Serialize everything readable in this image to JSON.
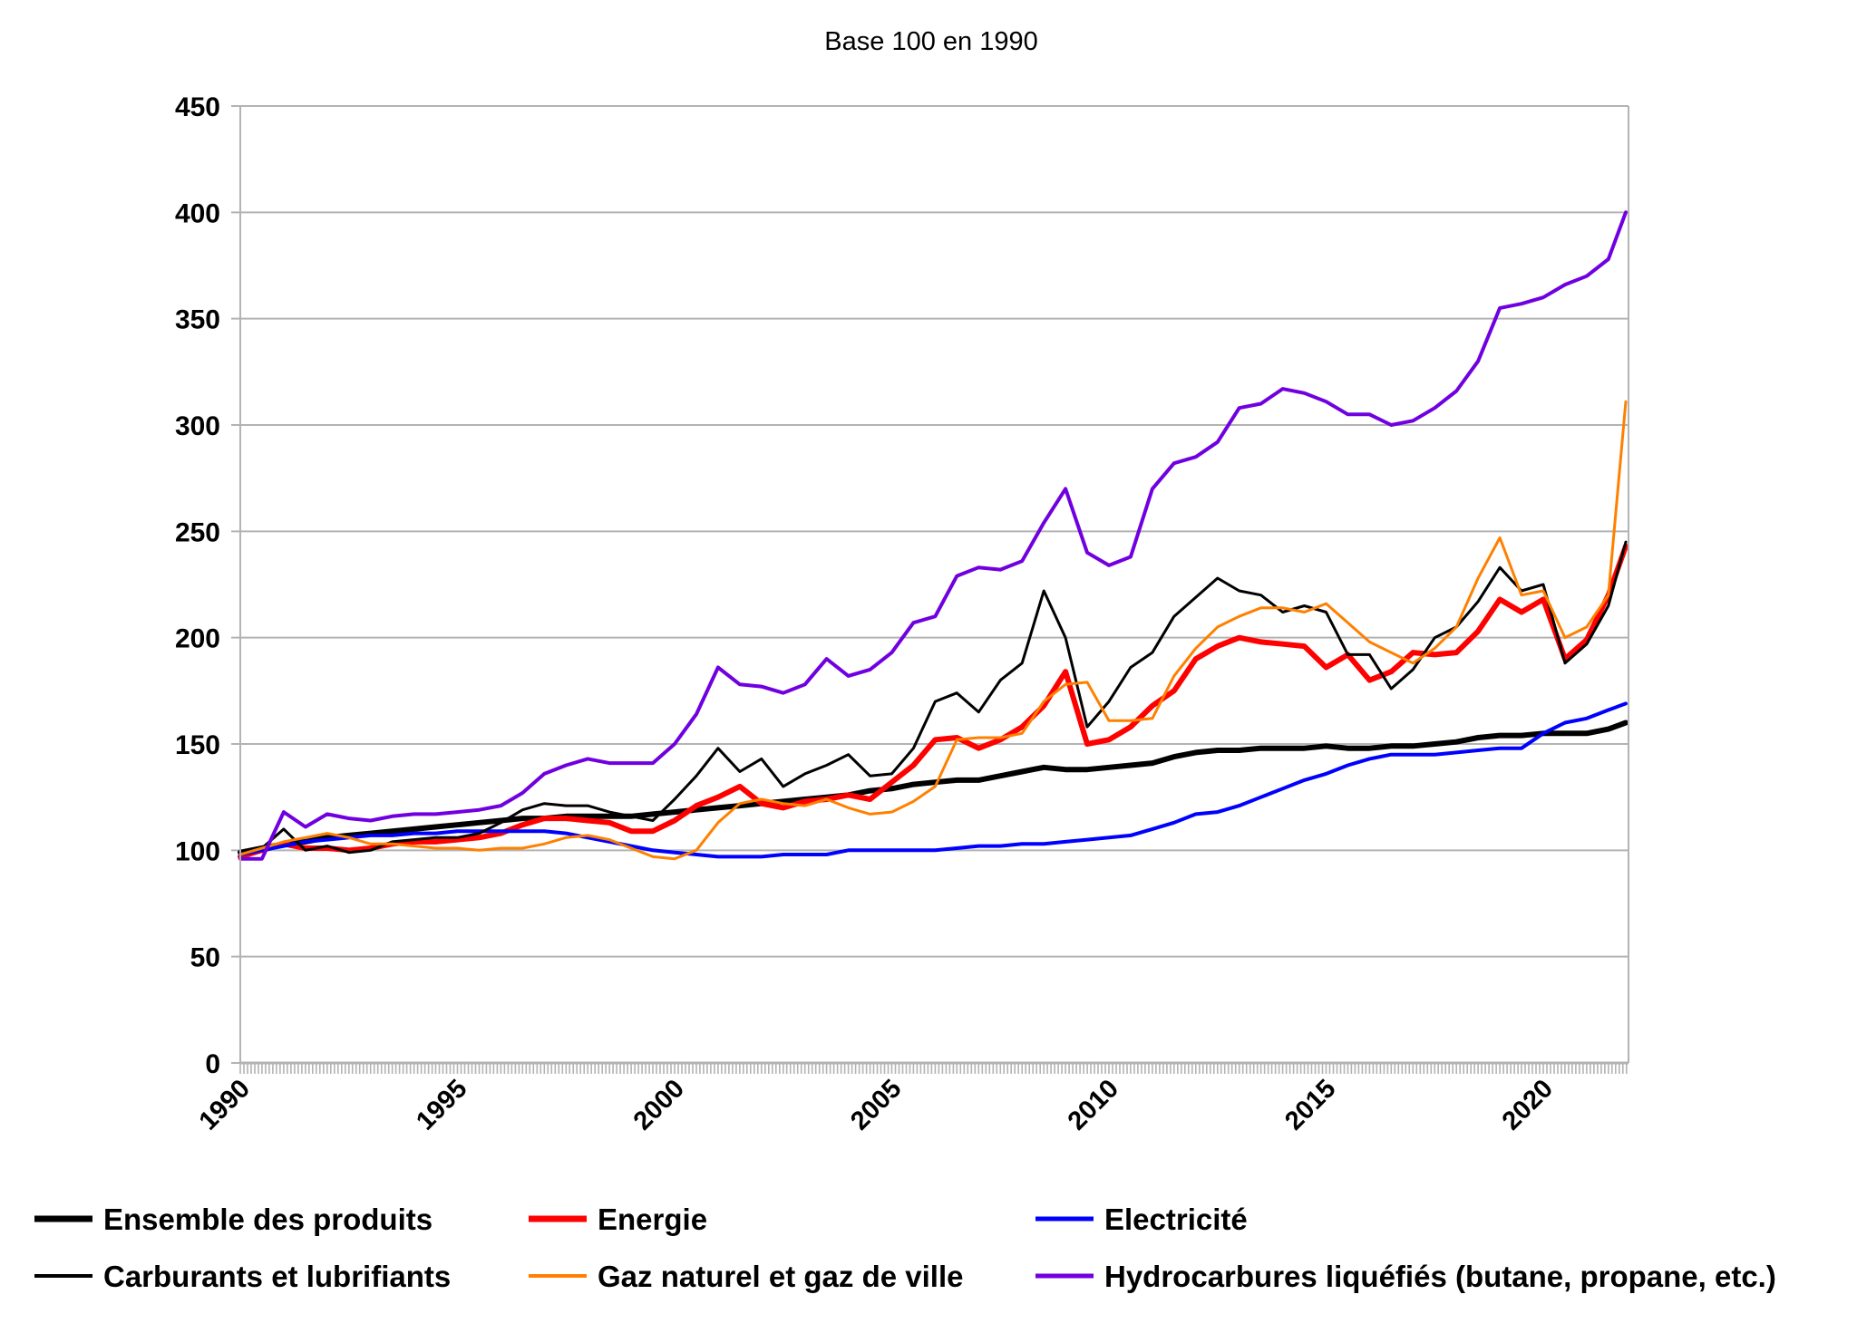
{
  "chart_data": {
    "type": "line",
    "title": "Base 100 en 1990",
    "xlabel": "",
    "ylabel": "",
    "xlim": [
      1990,
      2021.9
    ],
    "ylim": [
      0,
      450
    ],
    "yticks": [
      "0",
      "50",
      "100",
      "150",
      "200",
      "250",
      "300",
      "350",
      "400",
      "450"
    ],
    "xticks": [
      "1990",
      "1995",
      "2000",
      "2005",
      "2010",
      "2015",
      "2020"
    ],
    "grid": true,
    "legend_position": "bottom",
    "x": [
      1990.0,
      1990.5,
      1991.0,
      1991.5,
      1992.0,
      1992.5,
      1993.0,
      1993.5,
      1994.0,
      1994.5,
      1995.0,
      1995.5,
      1996.0,
      1996.5,
      1997.0,
      1997.5,
      1998.0,
      1998.5,
      1999.0,
      1999.5,
      2000.0,
      2000.5,
      2001.0,
      2001.5,
      2002.0,
      2002.5,
      2003.0,
      2003.5,
      2004.0,
      2004.5,
      2005.0,
      2005.5,
      2006.0,
      2006.5,
      2007.0,
      2007.5,
      2008.0,
      2008.5,
      2009.0,
      2009.5,
      2010.0,
      2010.5,
      2011.0,
      2011.5,
      2012.0,
      2012.5,
      2013.0,
      2013.5,
      2014.0,
      2014.5,
      2015.0,
      2015.5,
      2016.0,
      2016.5,
      2017.0,
      2017.5,
      2018.0,
      2018.5,
      2019.0,
      2019.5,
      2020.0,
      2020.5,
      2021.0,
      2021.5,
      2021.9
    ],
    "series": [
      {
        "name": "Ensemble des produits",
        "color": "#000000",
        "width": 6,
        "values": [
          99,
          101,
          103,
          104,
          106,
          107,
          108,
          109,
          110,
          111,
          112,
          113,
          114,
          115,
          115,
          116,
          116,
          116,
          116,
          117,
          118,
          119,
          120,
          121,
          122,
          123,
          124,
          125,
          126,
          128,
          129,
          131,
          132,
          133,
          133,
          135,
          137,
          139,
          138,
          138,
          139,
          140,
          141,
          144,
          146,
          147,
          147,
          148,
          148,
          148,
          149,
          148,
          148,
          149,
          149,
          150,
          151,
          153,
          154,
          154,
          155,
          155,
          155,
          157,
          160
        ]
      },
      {
        "name": "Energie",
        "color": "#ff0000",
        "width": 6,
        "values": [
          97,
          100,
          103,
          101,
          101,
          100,
          101,
          103,
          104,
          104,
          105,
          106,
          108,
          112,
          115,
          115,
          114,
          113,
          109,
          109,
          114,
          121,
          125,
          130,
          122,
          120,
          123,
          124,
          126,
          124,
          132,
          140,
          152,
          153,
          148,
          152,
          158,
          168,
          184,
          150,
          152,
          158,
          168,
          175,
          190,
          196,
          200,
          198,
          197,
          196,
          186,
          192,
          180,
          184,
          193,
          192,
          193,
          203,
          218,
          212,
          218,
          190,
          199,
          220,
          243
        ]
      },
      {
        "name": "Electricité",
        "color": "#0000ff",
        "width": 4,
        "values": [
          98,
          100,
          102,
          104,
          105,
          106,
          107,
          107,
          108,
          108,
          109,
          109,
          109,
          109,
          109,
          108,
          106,
          104,
          102,
          100,
          99,
          98,
          97,
          97,
          97,
          98,
          98,
          98,
          100,
          100,
          100,
          100,
          100,
          101,
          102,
          102,
          103,
          103,
          104,
          105,
          106,
          107,
          110,
          113,
          117,
          118,
          121,
          125,
          129,
          133,
          136,
          140,
          143,
          145,
          145,
          145,
          146,
          147,
          148,
          148,
          155,
          160,
          162,
          166,
          169
        ]
      },
      {
        "name": "Carburants et lubrifiants",
        "color": "#000000",
        "width": 3,
        "values": [
          98,
          101,
          110,
          100,
          102,
          99,
          100,
          104,
          105,
          106,
          106,
          108,
          113,
          119,
          122,
          121,
          121,
          118,
          116,
          114,
          124,
          135,
          148,
          137,
          143,
          130,
          136,
          140,
          145,
          135,
          136,
          148,
          170,
          174,
          165,
          180,
          188,
          222,
          200,
          158,
          170,
          186,
          193,
          210,
          219,
          228,
          222,
          220,
          212,
          215,
          212,
          192,
          192,
          176,
          185,
          200,
          205,
          217,
          233,
          222,
          225,
          188,
          197,
          215,
          245
        ]
      },
      {
        "name": "Gaz naturel et gaz de ville",
        "color": "#ff8000",
        "width": 3,
        "values": [
          98,
          101,
          104,
          106,
          108,
          106,
          103,
          103,
          102,
          101,
          101,
          100,
          101,
          101,
          103,
          106,
          107,
          105,
          101,
          97,
          96,
          100,
          113,
          122,
          124,
          122,
          121,
          124,
          120,
          117,
          118,
          123,
          130,
          152,
          153,
          153,
          155,
          170,
          178,
          179,
          161,
          161,
          162,
          182,
          195,
          205,
          210,
          214,
          214,
          212,
          216,
          207,
          198,
          193,
          188,
          195,
          205,
          228,
          247,
          220,
          222,
          200,
          205,
          220,
          311
        ]
      },
      {
        "name": "Hydrocarbures liquéfiés (butane, propane, etc.)",
        "color": "#7000e0",
        "width": 4,
        "values": [
          96,
          96,
          118,
          111,
          117,
          115,
          114,
          116,
          117,
          117,
          118,
          119,
          121,
          127,
          136,
          140,
          143,
          141,
          141,
          141,
          150,
          164,
          186,
          178,
          177,
          174,
          178,
          190,
          182,
          185,
          193,
          207,
          210,
          229,
          233,
          232,
          236,
          254,
          270,
          240,
          234,
          238,
          270,
          282,
          285,
          292,
          308,
          310,
          317,
          315,
          311,
          305,
          305,
          300,
          302,
          308,
          316,
          330,
          355,
          357,
          360,
          366,
          370,
          378,
          400
        ]
      }
    ]
  }
}
